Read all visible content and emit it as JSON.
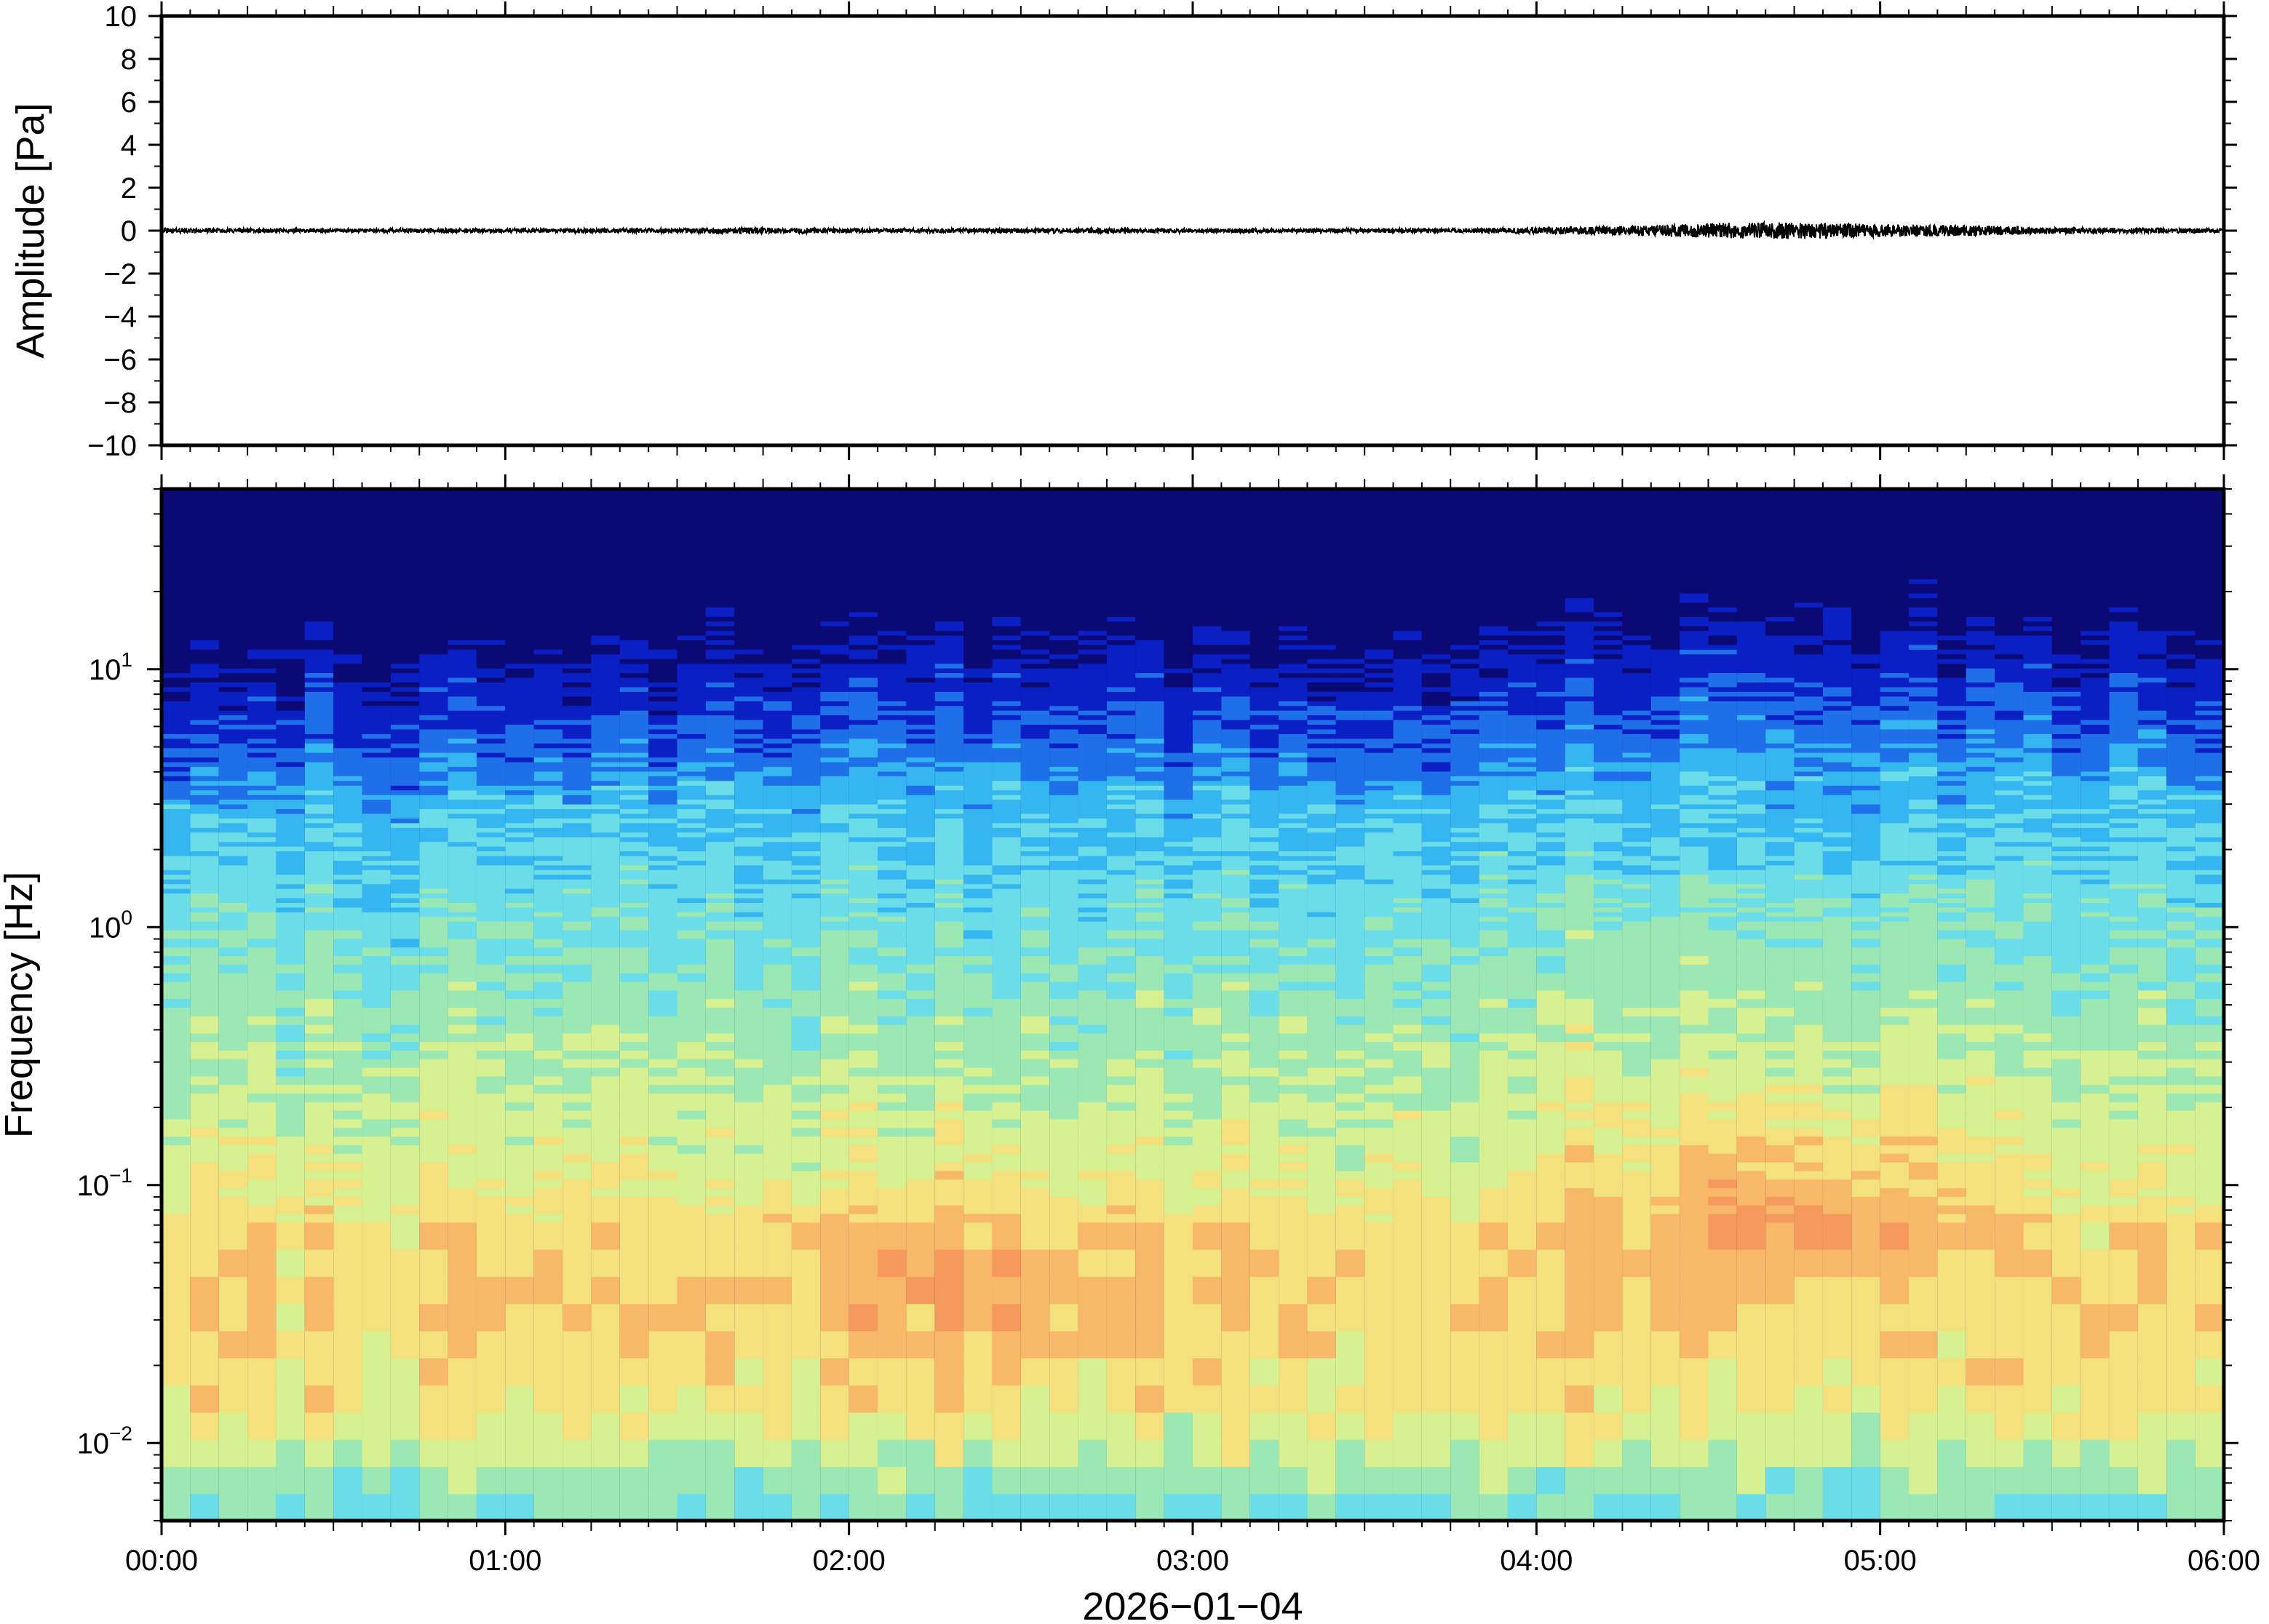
{
  "chart_data": [
    {
      "type": "line",
      "panel": "waveform",
      "ylabel": "Amplitude [Pa]",
      "ylim": [
        -10,
        10
      ],
      "yticks": [
        10,
        8,
        6,
        4,
        2,
        0,
        -2,
        -4,
        -6,
        -8,
        -10
      ],
      "ytick_labels": [
        "10",
        "8",
        "6",
        "4",
        "2",
        "0",
        "−2",
        "−4",
        "−6",
        "−8",
        "−10"
      ],
      "xlim_hours": [
        0,
        6
      ],
      "grid": false,
      "envelope": {
        "x_hours": [
          0.0,
          0.25,
          0.5,
          0.75,
          1.0,
          1.25,
          1.5,
          1.75,
          2.0,
          2.25,
          2.5,
          2.75,
          3.0,
          3.25,
          3.5,
          3.75,
          4.0,
          4.25,
          4.5,
          4.75,
          5.0,
          5.25,
          5.5,
          5.75,
          6.0
        ],
        "amplitude_pa": [
          0.1,
          0.1,
          0.1,
          0.1,
          0.1,
          0.1,
          0.12,
          0.15,
          0.1,
          0.1,
          0.12,
          0.12,
          0.1,
          0.1,
          0.1,
          0.1,
          0.15,
          0.22,
          0.35,
          0.4,
          0.3,
          0.25,
          0.15,
          0.12,
          0.1
        ]
      }
    },
    {
      "type": "heatmap",
      "panel": "spectrogram",
      "ylabel": "Frequency [Hz]",
      "yscale": "log",
      "ylim": [
        0.005,
        50
      ],
      "yticks": [
        0.01,
        0.1,
        1,
        10
      ],
      "ytick_labels": [
        {
          "base": "10",
          "exp": "−2"
        },
        {
          "base": "10",
          "exp": "−1"
        },
        {
          "base": "10",
          "exp": "0"
        },
        {
          "base": "10",
          "exp": "1"
        }
      ],
      "xticks_hours": [
        0,
        1,
        2,
        3,
        4,
        5,
        6
      ],
      "xtick_labels": [
        "00:00",
        "01:00",
        "02:00",
        "03:00",
        "04:00",
        "05:00",
        "06:00"
      ],
      "xlabel": "2026−01−04",
      "grid": false,
      "colormap": [
        "#0b0a74",
        "#0a1fc4",
        "#1f6fe8",
        "#35b6f0",
        "#6adde8",
        "#9be8b4",
        "#d6f092",
        "#f4e07c",
        "#f8b86a",
        "#f59a5c"
      ],
      "upper_edge_hz": {
        "x_hours": [
          0.0,
          0.5,
          1.0,
          1.5,
          2.0,
          2.5,
          3.0,
          3.5,
          4.0,
          4.5,
          5.0,
          5.5,
          6.0
        ],
        "freq_hz": [
          11,
          13,
          12,
          13,
          14,
          15,
          13,
          12,
          16,
          19,
          18,
          16,
          14
        ]
      },
      "energy_peaks": [
        {
          "x_hours": 2.35,
          "freq_hz": 0.04
        },
        {
          "x_hours": 4.75,
          "freq_hz": 0.08
        }
      ]
    }
  ]
}
